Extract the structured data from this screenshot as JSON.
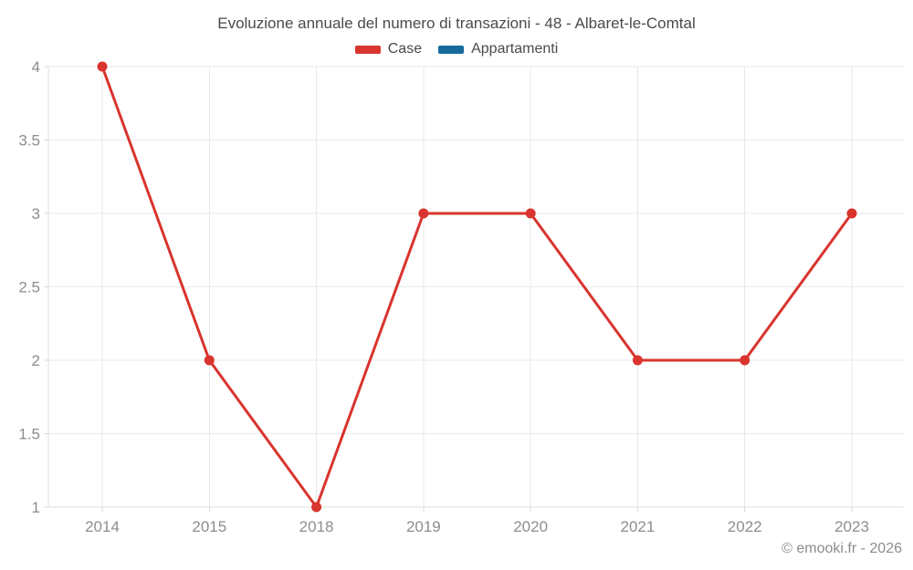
{
  "chart_data": {
    "type": "line",
    "title": "Evoluzione annuale del numero di transazioni - 48 - Albaret-le-Comtal",
    "categories": [
      "2014",
      "2015",
      "2018",
      "2019",
      "2020",
      "2021",
      "2022",
      "2023"
    ],
    "series": [
      {
        "name": "Case",
        "color": "#d9342e",
        "values": [
          4,
          2,
          1,
          3,
          3,
          2,
          2,
          3
        ]
      },
      {
        "name": "Appartamenti",
        "color": "#176a9c",
        "values": []
      }
    ],
    "ylim": [
      1,
      4
    ],
    "y_ticks": [
      1,
      1.5,
      2,
      2.5,
      3,
      3.5,
      4
    ],
    "grid": true,
    "legend_position": "top"
  },
  "footer": {
    "credit": "© emooki.fr - 2026"
  },
  "colors": {
    "grid": "#e9e9e9",
    "axis": "#dcdcdc",
    "tick_label": "#8d8d8d",
    "title_text": "#4a4a4a",
    "background": "#ffffff"
  }
}
